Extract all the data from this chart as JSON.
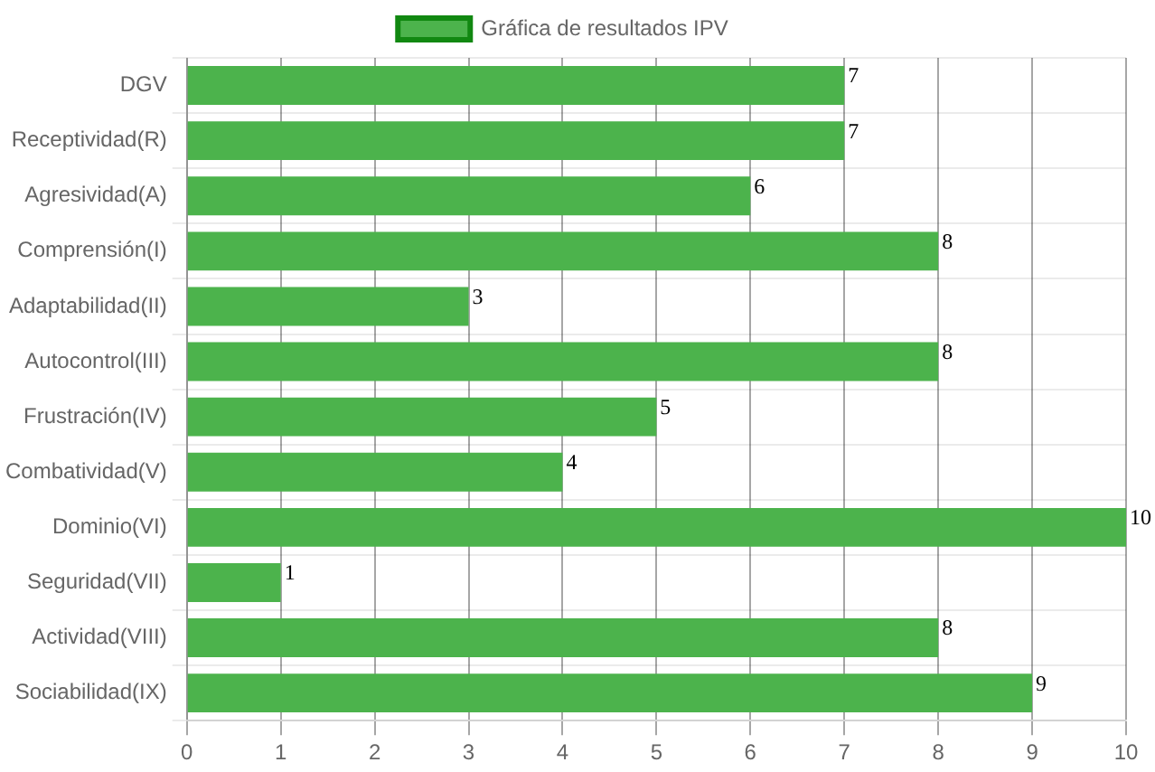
{
  "chart_data": {
    "type": "bar",
    "orientation": "horizontal",
    "categories": [
      "DGV",
      "Receptividad(R)",
      "Agresividad(A)",
      "Comprensión(I)",
      "Adaptabilidad(II)",
      "Autocontrol(III)",
      "Frustración(IV)",
      "Combatividad(V)",
      "Dominio(VI)",
      "Seguridad(VII)",
      "Actividad(VIII)",
      "Sociabilidad(IX)"
    ],
    "series": [
      {
        "name": "Gráfica de resultados IPV",
        "color": "#4cb34c",
        "values": [
          7,
          7,
          6,
          8,
          3,
          8,
          5,
          4,
          10,
          1,
          8,
          9
        ]
      }
    ],
    "xlim": [
      0,
      10
    ],
    "xticks": [
      0,
      1,
      2,
      3,
      4,
      5,
      6,
      7,
      8,
      9,
      10
    ],
    "grid": true,
    "legend": "top",
    "data_labels": true
  }
}
